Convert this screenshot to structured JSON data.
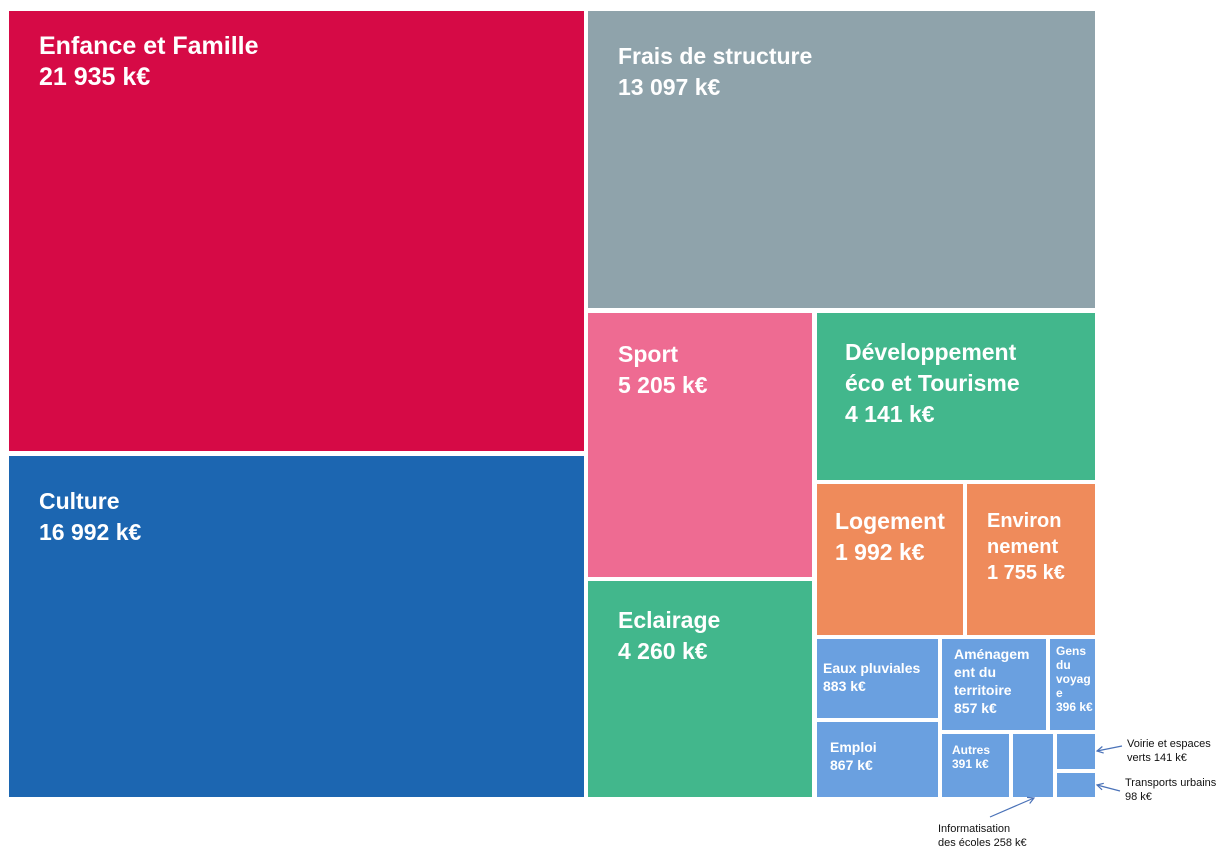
{
  "chart_data": {
    "type": "treemap",
    "unit": "k€",
    "items": [
      {
        "name": "Enfance et Famille",
        "value": 21935,
        "display_label": "Enfance et Famille",
        "display_value": "21 935 k€",
        "color": "#d60a46"
      },
      {
        "name": "Culture",
        "value": 16992,
        "display_label": "Culture",
        "display_value": "16 992 k€",
        "color": "#1c66b1"
      },
      {
        "name": "Frais de structure",
        "value": 13097,
        "display_label": "Frais de structure",
        "display_value": "13 097 k€",
        "color": "#8fa3ab"
      },
      {
        "name": "Sport",
        "value": 5205,
        "display_label": "Sport",
        "display_value": "5 205 k€",
        "color": "#ee6b92"
      },
      {
        "name": "Eclairage",
        "value": 4260,
        "display_label": "Eclairage",
        "display_value": "4 260 k€",
        "color": "#42b78c"
      },
      {
        "name": "Développement éco et Tourisme",
        "value": 4141,
        "display_label": "Développement\néco et Tourisme",
        "display_value": "4 141 k€",
        "color": "#42b78c"
      },
      {
        "name": "Logement",
        "value": 1992,
        "display_label": "Logement",
        "display_value": "1 992 k€",
        "color": "#ef8b5b"
      },
      {
        "name": "Environnement",
        "value": 1755,
        "display_label": "Environ\nnement",
        "display_value": "1 755 k€",
        "color": "#ef8b5b"
      },
      {
        "name": "Eaux pluviales",
        "value": 883,
        "display_label": "Eaux pluviales",
        "display_value": "883 k€",
        "color": "#6aa0e0"
      },
      {
        "name": "Emploi",
        "value": 867,
        "display_label": "Emploi",
        "display_value": "867 k€",
        "color": "#6aa0e0"
      },
      {
        "name": "Aménagement du territoire",
        "value": 857,
        "display_label": "Aménagem\nent du\nterritoire",
        "display_value": "857 k€",
        "color": "#6aa0e0"
      },
      {
        "name": "Gens du voyage",
        "value": 396,
        "display_label": "Gens\ndu\nvoyag\ne",
        "display_value": "396 k€",
        "color": "#6aa0e0"
      },
      {
        "name": "Autres",
        "value": 391,
        "display_label": "Autres",
        "display_value": "391 k€",
        "color": "#6aa0e0"
      },
      {
        "name": "Informatisation des écoles",
        "value": 258,
        "display_label": "",
        "display_value": "",
        "callout": "Informatisation\ndes écoles 258 k€",
        "color": "#6aa0e0"
      },
      {
        "name": "Voirie et espaces verts",
        "value": 141,
        "display_label": "",
        "display_value": "",
        "callout": "Voirie et espaces\nverts 141 k€",
        "color": "#6aa0e0"
      },
      {
        "name": "Transports urbains",
        "value": 98,
        "display_label": "",
        "display_value": "",
        "callout": "Transports  urbains\n98 k€",
        "color": "#6aa0e0"
      }
    ]
  }
}
